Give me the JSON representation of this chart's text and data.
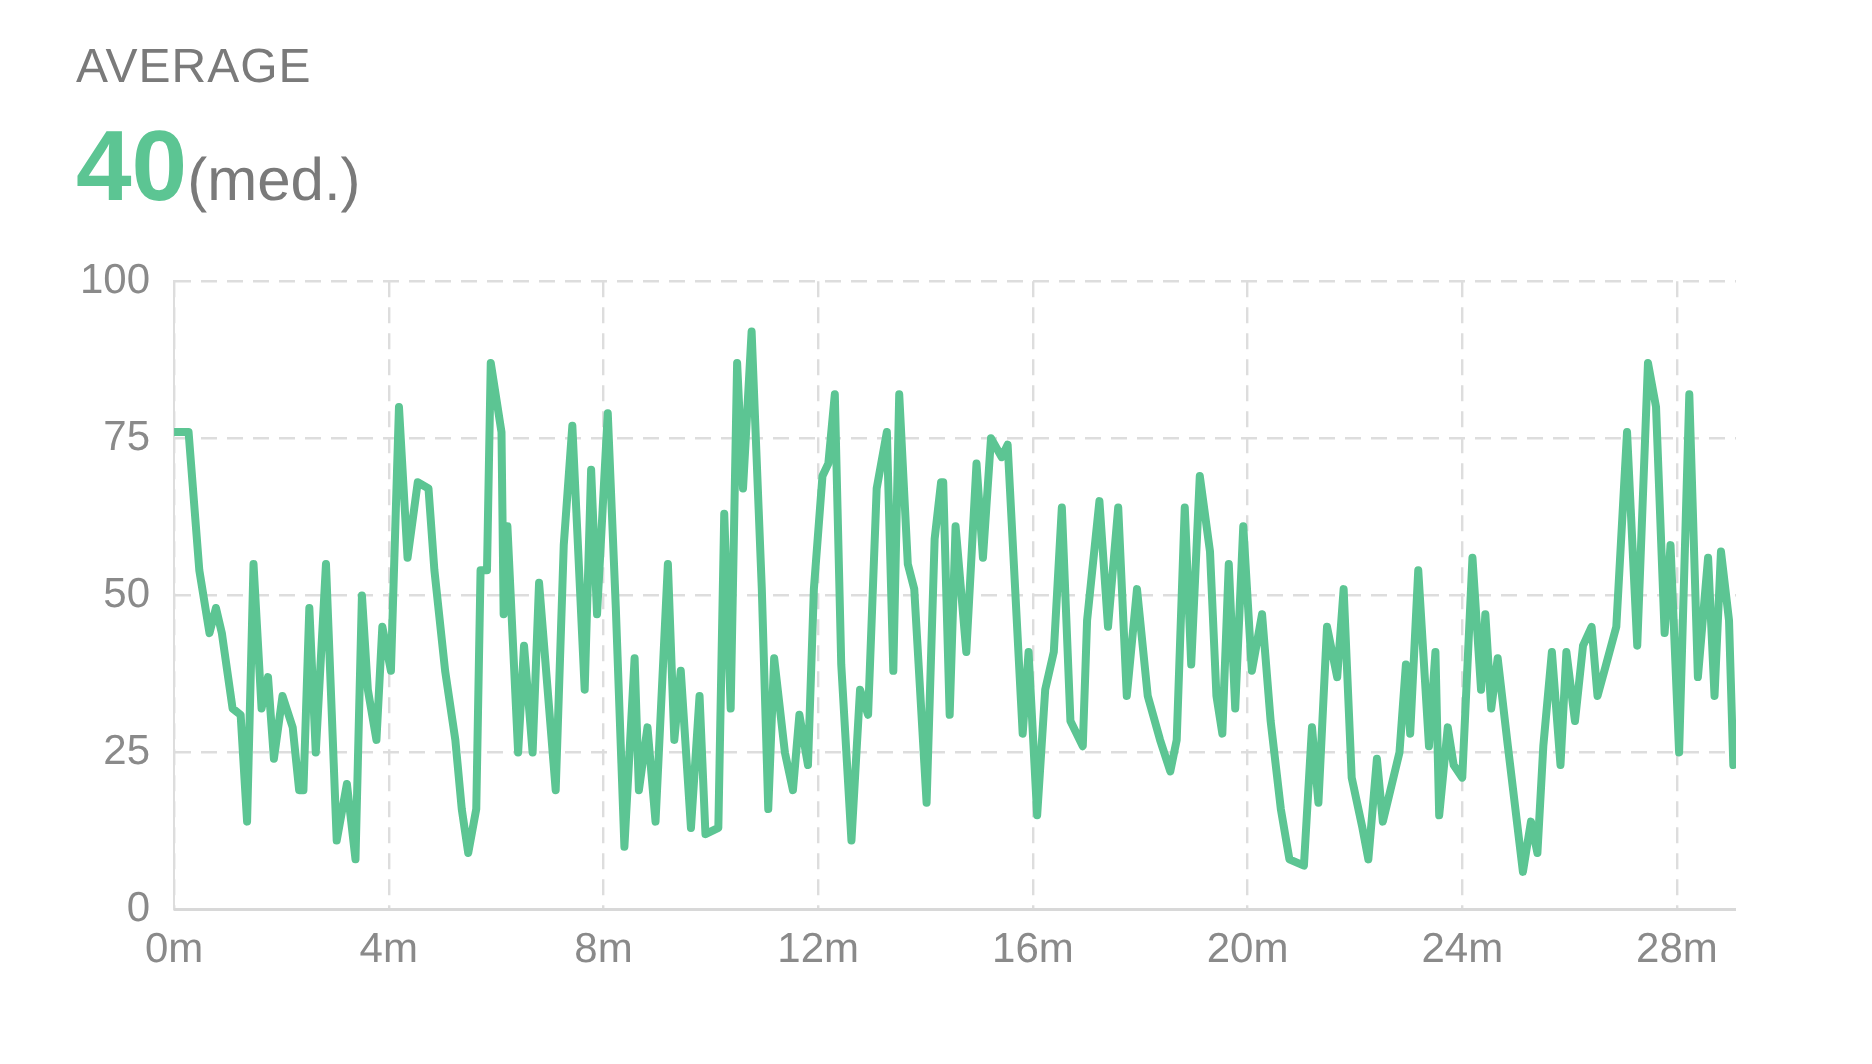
{
  "chart_data": {
    "type": "line",
    "title": "AVERAGE",
    "subtitle": "40(med.)",
    "x": [
      0,
      0.27,
      0.47,
      0.66,
      0.78,
      0.89,
      1.09,
      1.24,
      1.36,
      1.48,
      1.63,
      1.75,
      1.86,
      2.02,
      2.21,
      2.33,
      2.41,
      2.52,
      2.64,
      2.83,
      3.03,
      3.22,
      3.38,
      3.5,
      3.61,
      3.77,
      3.88,
      4.04,
      4.19,
      4.35,
      4.54,
      4.74,
      4.85,
      5.05,
      5.24,
      5.36,
      5.48,
      5.63,
      5.71,
      5.83,
      5.9,
      6.1,
      6.14,
      6.21,
      6.41,
      6.52,
      6.68,
      6.8,
      7.11,
      7.26,
      7.42,
      7.65,
      7.77,
      7.88,
      8.08,
      8.23,
      8.39,
      8.58,
      8.66,
      8.82,
      8.97,
      9.2,
      9.32,
      9.44,
      9.63,
      9.79,
      9.9,
      10.14,
      10.25,
      10.37,
      10.49,
      10.6,
      10.76,
      10.95,
      11.07,
      11.18,
      11.38,
      11.53,
      11.65,
      11.81,
      11.92,
      12.08,
      12.19,
      12.31,
      12.43,
      12.62,
      12.78,
      12.93,
      13.09,
      13.28,
      13.4,
      13.51,
      13.67,
      13.79,
      14.02,
      14.17,
      14.29,
      14.33,
      14.45,
      14.56,
      14.76,
      14.95,
      15.07,
      15.22,
      15.42,
      15.53,
      15.81,
      15.92,
      16.08,
      16.23,
      16.39,
      16.54,
      16.7,
      16.93,
      17.01,
      17.24,
      17.4,
      17.59,
      17.75,
      17.94,
      18.14,
      18.37,
      18.56,
      18.68,
      18.83,
      18.95,
      19.11,
      19.3,
      19.42,
      19.53,
      19.65,
      19.77,
      19.92,
      20.08,
      20.27,
      20.43,
      20.62,
      20.78,
      21.05,
      21.2,
      21.32,
      21.48,
      21.67,
      21.79,
      21.94,
      22.14,
      22.25,
      22.41,
      22.52,
      22.83,
      22.95,
      23.03,
      23.18,
      23.38,
      23.5,
      23.57,
      23.73,
      23.84,
      24.0,
      24.19,
      24.35,
      24.43,
      24.54,
      24.66,
      24.85,
      25.13,
      25.28,
      25.4,
      25.51,
      25.67,
      25.83,
      25.94,
      26.1,
      26.25,
      26.41,
      26.52,
      26.68,
      26.87,
      27.07,
      27.26,
      27.46,
      27.61,
      27.77,
      27.88,
      28.04,
      28.23,
      28.39,
      28.58,
      28.7,
      28.82,
      28.97,
      29.05
    ],
    "series": [
      {
        "color": "#5cc593",
        "values": [
          76,
          76,
          54,
          44,
          48,
          44,
          32,
          31,
          14,
          55,
          32,
          37,
          24,
          34,
          29,
          19,
          19,
          48,
          25,
          55,
          11,
          20,
          8,
          50,
          35,
          27,
          45,
          38,
          80,
          56,
          68,
          67,
          54,
          38,
          27,
          16,
          9,
          16,
          54,
          54,
          87,
          76,
          47,
          61,
          25,
          42,
          25,
          52,
          19,
          58,
          77,
          35,
          70,
          47,
          79,
          48,
          10,
          40,
          19,
          29,
          14,
          55,
          27,
          38,
          13,
          34,
          12,
          13,
          63,
          32,
          87,
          67,
          92,
          51,
          16,
          40,
          25,
          19,
          31,
          23,
          51,
          69,
          71,
          82,
          39,
          11,
          35,
          31,
          67,
          76,
          38,
          82,
          55,
          51,
          17,
          59,
          68,
          68,
          31,
          61,
          41,
          71,
          56,
          75,
          72,
          74,
          28,
          41,
          15,
          35,
          41,
          64,
          30,
          26,
          46,
          65,
          45,
          64,
          34,
          51,
          34,
          27,
          22,
          27,
          64,
          39,
          69,
          57,
          34,
          28,
          55,
          32,
          61,
          38,
          47,
          30,
          16,
          8,
          7,
          29,
          17,
          45,
          37,
          51,
          21,
          13,
          8,
          24,
          14,
          25,
          39,
          28,
          54,
          26,
          41,
          15,
          29,
          23,
          21,
          56,
          35,
          47,
          32,
          40,
          26,
          6,
          14,
          9,
          26,
          41,
          23,
          41,
          30,
          42,
          45,
          34,
          39,
          45,
          76,
          42,
          87,
          80,
          44,
          58,
          25,
          82,
          37,
          56,
          34,
          57,
          46,
          23
        ]
      }
    ],
    "xlim": [
      0,
      29.1
    ],
    "xticks": [
      {
        "value": 0,
        "label": "0m"
      },
      {
        "value": 4,
        "label": "4m"
      },
      {
        "value": 8,
        "label": "8m"
      },
      {
        "value": 12,
        "label": "12m"
      },
      {
        "value": 16,
        "label": "16m"
      },
      {
        "value": 20,
        "label": "20m"
      },
      {
        "value": 24,
        "label": "24m"
      },
      {
        "value": 28,
        "label": "28m"
      }
    ],
    "ylim": [
      0,
      100
    ],
    "yticks": [
      0,
      25,
      50,
      75,
      100
    ],
    "grid": true,
    "legend": false,
    "marker": "none",
    "line_style": "solid"
  }
}
